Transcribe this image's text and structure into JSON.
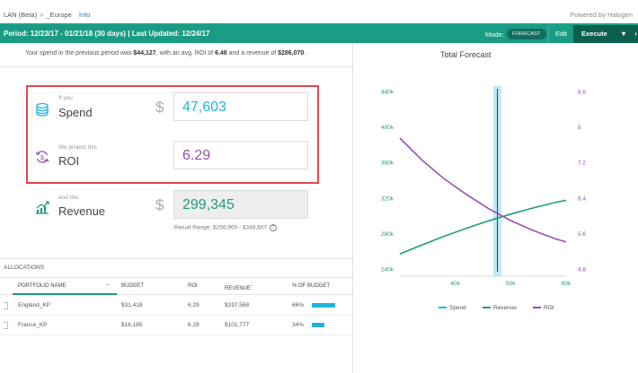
{
  "breadcrumb": {
    "root": "LAN (Beta)",
    "separator": ">",
    "current": "_Europe",
    "info": "Info"
  },
  "powered_by": "Powered by Halogen",
  "period_bar": {
    "text": "Period: 12/23/17 - 01/21/18  (30 days)  |  Last Updated: 12/24/17",
    "mode_label": "Mode:",
    "mode_value": "FORECAST",
    "edit_label": "Edit",
    "execute_label": "Execute",
    "execute_chevron": "▾",
    "more_chevron": "‹"
  },
  "summary": {
    "prefix": "Your spend in the previous period was ",
    "spend": "$44,127",
    "mid1": ", with an avg. ROI of ",
    "roi": "6.48",
    "mid2": " and a revenue of ",
    "revenue": "$286,070",
    "suffix": "."
  },
  "spend_row": {
    "small": "If you",
    "label": "Spend",
    "currency": "$",
    "value": "47,603"
  },
  "roi_row": {
    "small": "We project this",
    "label": "ROI",
    "value": "6.29"
  },
  "revenue_row": {
    "small": "and this",
    "label": "Revenue",
    "currency": "$",
    "value": "299,345"
  },
  "result_range": "Result Range: $256,900 - $348,607",
  "help_glyph": "?",
  "allocations": {
    "title": "ALLOCATIONS",
    "headers": {
      "portfolio": "PORTFOLIO NAME",
      "sort": "⌃",
      "budget": "BUDGET",
      "roi": "ROI",
      "revenue": "REVENUE",
      "revenue_marker": "↑",
      "pct": "% OF BUDGET"
    },
    "rows": [
      {
        "name": "England_KP",
        "budget": "$31,418",
        "roi": "6.29",
        "revenue": "$197,568",
        "pct": "66%",
        "pct_value": 0.66
      },
      {
        "name": "France_KP",
        "budget": "$16,185",
        "roi": "6.29",
        "revenue": "$101,777",
        "pct": "34%",
        "pct_value": 0.34
      }
    ]
  },
  "colors": {
    "brand": "#1a9b83",
    "spend": "#22b4de",
    "revenue": "#1e9c7d",
    "roi": "#9a4fb5",
    "highlight": "#e0474c"
  },
  "chart_data": {
    "type": "line",
    "title": "Total Forecast",
    "x_ticks": [
      "40k",
      "50k",
      "60k"
    ],
    "xlim": [
      30000,
      60000
    ],
    "left_axis_ticks": [
      "440k",
      "400k",
      "360k",
      "320k",
      "280k",
      "240k"
    ],
    "ylim_left": [
      240000,
      440000
    ],
    "right_axis_ticks": [
      "8.8",
      "8",
      "7.2",
      "6.4",
      "5.6",
      "4.8"
    ],
    "ylim_right": [
      4.8,
      8.8
    ],
    "spend_marker": 47603,
    "series": [
      {
        "name": "Revenue",
        "axis": "left",
        "x": [
          30000,
          34000,
          38000,
          42000,
          46000,
          50000,
          54000,
          58000,
          60000
        ],
        "y": [
          256900,
          267200,
          276900,
          285900,
          294200,
          301800,
          308700,
          314800,
          317500
        ]
      },
      {
        "name": "ROI",
        "axis": "right",
        "x": [
          30000,
          34000,
          38000,
          42000,
          46000,
          50000,
          54000,
          58000,
          60000
        ],
        "y": [
          7.75,
          7.25,
          6.83,
          6.48,
          6.16,
          5.89,
          5.67,
          5.48,
          5.41
        ]
      }
    ],
    "legend": [
      "Spend",
      "Revenue",
      "ROI"
    ],
    "legend_position": "bottom"
  }
}
